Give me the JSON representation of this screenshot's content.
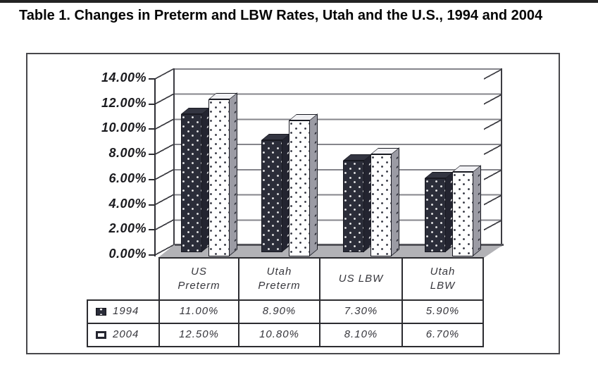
{
  "page": {
    "title": "Table 1. Changes in Preterm and LBW Rates, Utah and the U.S., 1994 and 2004"
  },
  "chart_data": {
    "type": "bar",
    "style": "3d-clustered-columns-with-data-table",
    "title": "",
    "categories": [
      "US Preterm",
      "Utah Preterm",
      "US LBW",
      "Utah LBW"
    ],
    "categories_display": [
      "US\nPreterm",
      "Utah\nPreterm",
      "US LBW",
      "Utah\nLBW"
    ],
    "series": [
      {
        "name": "1994",
        "values": [
          11.0,
          8.9,
          7.3,
          5.9
        ],
        "labels": [
          "11.00%",
          "8.90%",
          "7.30%",
          "5.90%"
        ],
        "pattern": "dark-with-white-dots",
        "color": "#2b2d39"
      },
      {
        "name": "2004",
        "values": [
          12.5,
          10.8,
          8.1,
          6.7
        ],
        "labels": [
          "12.50%",
          "10.80%",
          "8.10%",
          "6.70%"
        ],
        "pattern": "white-with-dark-dots",
        "color": "#ffffff"
      }
    ],
    "value_format": "percent",
    "ylim": [
      0,
      14
    ],
    "ytick_step": 2,
    "ytick_labels": [
      "14.00%",
      "12.00%",
      "10.00%",
      "8.00%",
      "6.00%",
      "4.00%",
      "2.00%",
      "0.00%"
    ],
    "grid": true,
    "legend_position": "data-table-left-column",
    "wall_color": "#ffffff",
    "floor_color": "#b2b2b6",
    "gridline_color": "#85858b"
  }
}
